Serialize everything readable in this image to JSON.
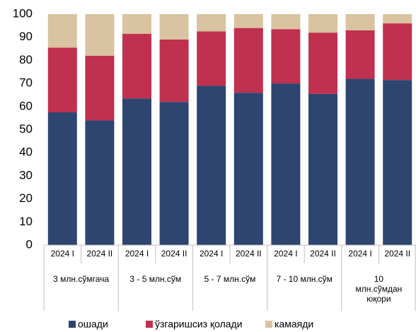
{
  "chart_data": {
    "type": "stacked_bar",
    "categories": [
      "2024 I",
      "2024 II",
      "2024 I",
      "2024 II",
      "2024 I",
      "2024 II",
      "2024 I",
      "2024 II",
      "2024 I",
      "2024 II"
    ],
    "groups": [
      "3 млн.сўмгача",
      "3 - 5 млн.сўм",
      "5 - 7 млн.сўм",
      "7 - 10 млн.сўм",
      "10 млн.сўмдан юқори"
    ],
    "series": [
      {
        "name": "ошади",
        "color": "#2e4570",
        "values": [
          57.5,
          54,
          63.5,
          62,
          69,
          66,
          70,
          65.5,
          72,
          71.5
        ]
      },
      {
        "name": "ўзгаришсиз қолади",
        "color": "#c0304f",
        "values": [
          28,
          28,
          28,
          27,
          23.5,
          28,
          23.5,
          26.5,
          21,
          24.5
        ]
      },
      {
        "name": "камаяди",
        "color": "#d9c3a0",
        "values": [
          14.5,
          18,
          8.5,
          11,
          7.5,
          6,
          6.5,
          8,
          7,
          4
        ]
      }
    ],
    "ylim": [
      0,
      100
    ],
    "yticks": [
      0,
      10,
      20,
      30,
      40,
      50,
      60,
      70,
      80,
      90,
      100
    ],
    "legend": "bottom"
  }
}
